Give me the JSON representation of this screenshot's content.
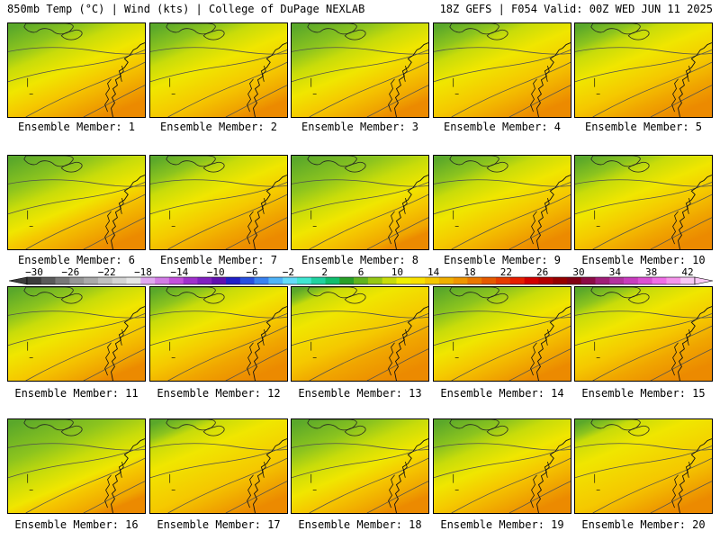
{
  "header": {
    "left": "850mb Temp (°C) | Wind (kts) | College of DuPage NEXLAB",
    "right": "18Z GEFS | F054 Valid: 00Z WED JUN 11 2025"
  },
  "members": [
    {
      "label": "Ensemble Member: 1",
      "greenExtent": 0.55,
      "warmExtent": 0.45
    },
    {
      "label": "Ensemble Member: 2",
      "greenExtent": 0.5,
      "warmExtent": 0.4
    },
    {
      "label": "Ensemble Member: 3",
      "greenExtent": 0.6,
      "warmExtent": 0.4
    },
    {
      "label": "Ensemble Member: 4",
      "greenExtent": 0.45,
      "warmExtent": 0.45
    },
    {
      "label": "Ensemble Member: 5",
      "greenExtent": 0.4,
      "warmExtent": 0.5
    },
    {
      "label": "Ensemble Member: 6",
      "greenExtent": 0.65,
      "warmExtent": 0.45
    },
    {
      "label": "Ensemble Member: 7",
      "greenExtent": 0.45,
      "warmExtent": 0.5
    },
    {
      "label": "Ensemble Member: 8",
      "greenExtent": 0.7,
      "warmExtent": 0.35
    },
    {
      "label": "Ensemble Member: 9",
      "greenExtent": 0.5,
      "warmExtent": 0.45
    },
    {
      "label": "Ensemble Member: 10",
      "greenExtent": 0.45,
      "warmExtent": 0.5
    },
    {
      "label": "Ensemble Member: 11",
      "greenExtent": 0.55,
      "warmExtent": 0.4
    },
    {
      "label": "Ensemble Member: 12",
      "greenExtent": 0.4,
      "warmExtent": 0.55
    },
    {
      "label": "Ensemble Member: 13",
      "greenExtent": 0.2,
      "warmExtent": 0.6
    },
    {
      "label": "Ensemble Member: 14",
      "greenExtent": 0.55,
      "warmExtent": 0.45
    },
    {
      "label": "Ensemble Member: 15",
      "greenExtent": 0.35,
      "warmExtent": 0.55
    },
    {
      "label": "Ensemble Member: 16",
      "greenExtent": 0.8,
      "warmExtent": 0.35
    },
    {
      "label": "Ensemble Member: 17",
      "greenExtent": 0.3,
      "warmExtent": 0.45
    },
    {
      "label": "Ensemble Member: 18",
      "greenExtent": 0.65,
      "warmExtent": 0.4
    },
    {
      "label": "Ensemble Member: 19",
      "greenExtent": 0.55,
      "warmExtent": 0.45
    },
    {
      "label": "Ensemble Member: 20",
      "greenExtent": 0.25,
      "warmExtent": 0.45
    }
  ],
  "colorbar": {
    "labels": [
      "−30",
      "−26",
      "−22",
      "−18",
      "−14",
      "−10",
      "−6",
      "−2",
      "2",
      "6",
      "10",
      "14",
      "18",
      "22",
      "26",
      "30",
      "34",
      "38",
      "42"
    ],
    "colors": [
      "#3c3c3c",
      "#5a5a5a",
      "#787878",
      "#969696",
      "#aaaaaa",
      "#c0c0c0",
      "#d4d4d4",
      "#e6e6e6",
      "#e0a8f0",
      "#d27ce6",
      "#c450dc",
      "#a030cc",
      "#8020c0",
      "#6010b0",
      "#2020c8",
      "#2850e0",
      "#3a82f0",
      "#50b4f8",
      "#64dcf8",
      "#40e6d2",
      "#20d2a0",
      "#10be6e",
      "#28a028",
      "#60b41e",
      "#96c814",
      "#c8dc0a",
      "#f0f000",
      "#fae100",
      "#f5c800",
      "#f0af00",
      "#f09600",
      "#eb7800",
      "#e65a00",
      "#e63c00",
      "#e61e00",
      "#d20000",
      "#b40000",
      "#960000",
      "#820014",
      "#8c0a46",
      "#a01e78",
      "#b432a0",
      "#c83cbe",
      "#dc50d2",
      "#f06ee6",
      "#f596eb",
      "#f8c8f5"
    ]
  }
}
